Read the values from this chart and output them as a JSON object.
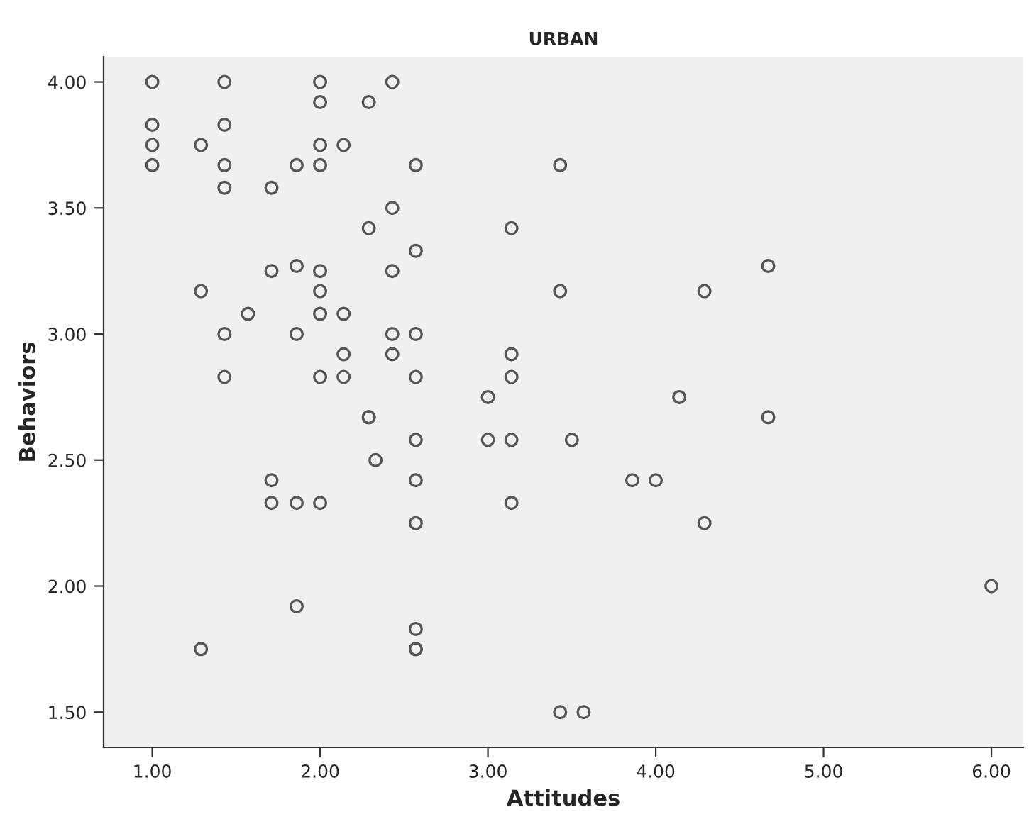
{
  "chart_data": {
    "type": "scatter",
    "title": "URBAN",
    "xlabel": "Attitudes",
    "ylabel": "Behaviors",
    "xlim": [
      0.71,
      6.19
    ],
    "ylim": [
      1.36,
      4.1
    ],
    "xticks": [
      {
        "value": 1,
        "label": "1.00"
      },
      {
        "value": 2,
        "label": "2.00"
      },
      {
        "value": 3,
        "label": "3.00"
      },
      {
        "value": 4,
        "label": "4.00"
      },
      {
        "value": 5,
        "label": "5.00"
      },
      {
        "value": 6,
        "label": "6.00"
      }
    ],
    "yticks": [
      {
        "value": 1.5,
        "label": "1.50"
      },
      {
        "value": 2,
        "label": "2.00"
      },
      {
        "value": 2.5,
        "label": "2.50"
      },
      {
        "value": 3,
        "label": "3.00"
      },
      {
        "value": 3.5,
        "label": "3.50"
      },
      {
        "value": 4,
        "label": "4.00"
      }
    ],
    "marker": "circle",
    "grid": false,
    "legend": false,
    "series": [
      {
        "color": "#555555",
        "x": [
          1.0,
          1.0,
          1.0,
          1.0,
          1.29,
          1.29,
          1.29,
          1.43,
          1.43,
          1.43,
          1.43,
          1.43,
          1.43,
          1.57,
          1.71,
          1.71,
          1.71,
          1.71,
          1.86,
          1.86,
          1.86,
          1.86,
          1.86,
          2.0,
          2.0,
          2.0,
          2.0,
          2.0,
          2.0,
          2.0,
          2.0,
          2.0,
          2.14,
          2.14,
          2.14,
          2.14,
          2.29,
          2.29,
          2.29,
          2.29,
          2.33,
          2.43,
          2.43,
          2.43,
          2.43,
          2.43,
          2.57,
          2.57,
          2.57,
          2.57,
          2.57,
          2.57,
          2.57,
          2.57,
          2.57,
          2.57,
          3.0,
          3.0,
          3.14,
          3.14,
          3.14,
          3.14,
          3.14,
          3.43,
          3.43,
          3.43,
          3.5,
          3.57,
          3.86,
          4.0,
          4.14,
          4.29,
          4.29,
          4.67,
          4.67,
          6.0
        ],
        "values": [
          4.0,
          3.83,
          3.75,
          3.67,
          3.75,
          3.17,
          1.75,
          4.0,
          3.83,
          3.67,
          3.58,
          3.0,
          2.83,
          3.08,
          3.58,
          3.25,
          2.42,
          2.33,
          3.67,
          3.27,
          3.0,
          2.33,
          1.92,
          4.0,
          3.92,
          3.75,
          3.67,
          3.25,
          3.17,
          3.08,
          2.83,
          2.33,
          3.75,
          3.08,
          2.92,
          2.83,
          3.92,
          3.42,
          2.67,
          2.67,
          2.5,
          4.0,
          3.5,
          3.25,
          3.0,
          2.92,
          3.67,
          3.33,
          3.0,
          2.83,
          2.58,
          2.42,
          2.25,
          1.83,
          1.75,
          1.75,
          2.75,
          2.58,
          3.42,
          2.92,
          2.83,
          2.58,
          2.33,
          3.67,
          3.17,
          1.5,
          2.58,
          1.5,
          2.42,
          2.42,
          2.75,
          3.17,
          2.25,
          3.27,
          2.67,
          2.0
        ]
      }
    ]
  }
}
